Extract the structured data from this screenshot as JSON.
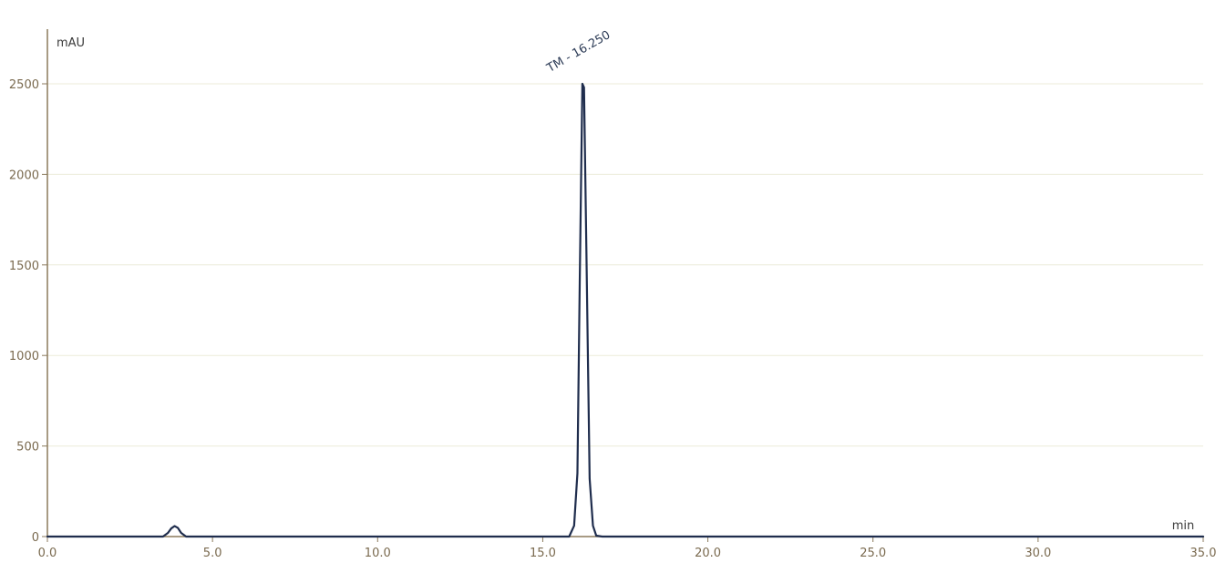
{
  "chart_data": {
    "type": "line",
    "title": "",
    "xlabel": "min",
    "ylabel": "mAU",
    "xlim": [
      0,
      35
    ],
    "ylim": [
      0,
      2750
    ],
    "x_ticks": [
      0,
      5,
      10,
      15,
      20,
      25,
      30,
      35
    ],
    "x_tick_labels": [
      "0.0",
      "5.0",
      "10.0",
      "15.0",
      "20.0",
      "25.0",
      "30.0",
      "35.0"
    ],
    "y_ticks": [
      0,
      500,
      1000,
      1500,
      2000,
      2500
    ],
    "y_tick_labels": [
      "0",
      "500",
      "1000",
      "1500",
      "2000",
      "2500"
    ],
    "grid": true,
    "line_color": "#1f2d4d",
    "series": [
      {
        "x": [
          0.0,
          3.5,
          3.65,
          3.75,
          3.85,
          3.95,
          4.05,
          4.2,
          15.8,
          15.95,
          16.05,
          16.12,
          16.2,
          16.25,
          16.32,
          16.42,
          16.52,
          16.62,
          16.8,
          35.0
        ],
        "y": [
          0,
          0,
          20,
          45,
          58,
          48,
          20,
          0,
          0,
          60,
          350,
          1400,
          2500,
          2480,
          1600,
          320,
          60,
          5,
          0,
          0
        ]
      }
    ],
    "annotations": [
      {
        "text": "TM - 16.250",
        "x": 16.25,
        "y": 2500
      }
    ]
  }
}
